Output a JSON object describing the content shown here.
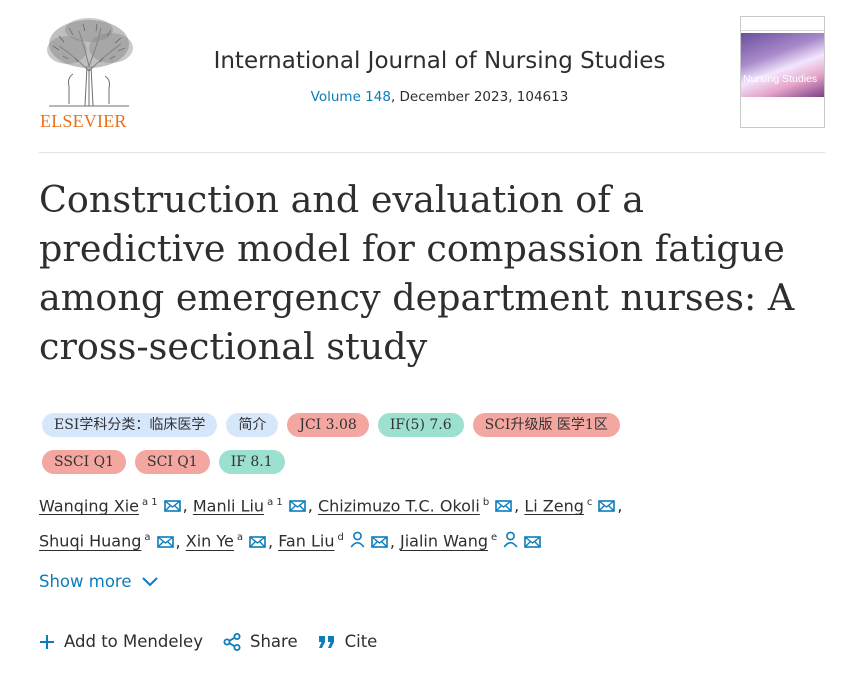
{
  "header": {
    "publisher": "ELSEVIER",
    "journal_title": "International Journal of Nursing Studies",
    "volume_link": "Volume 148",
    "volume_rest": ", December 2023, 104613",
    "cover_title": "Nursing Studies"
  },
  "article": {
    "title": "Construction and evaluation of a predictive model for compassion fatigue among emergency department nurses: A cross-sectional study"
  },
  "badges": [
    [
      {
        "label": "ESI学科分类：临床医学",
        "color": "#d6e6fb"
      },
      {
        "label": "简介",
        "color": "#d6e6fb"
      },
      {
        "label": "JCI 3.08",
        "color": "#f4a6a0"
      },
      {
        "label": "IF(5) 7.6",
        "color": "#9ce0cf"
      },
      {
        "label": "SCI升级版 医学1区",
        "color": "#f4a6a0"
      }
    ],
    [
      {
        "label": "SSCI Q1",
        "color": "#f4a6a0"
      },
      {
        "label": "SCI Q1",
        "color": "#f4a6a0"
      },
      {
        "label": "IF 8.1",
        "color": "#9ce0cf"
      }
    ]
  ],
  "authors": [
    {
      "name": "Wanqing Xie",
      "sup": "a 1",
      "person": false,
      "sep": ","
    },
    {
      "name": "Manli Liu",
      "sup": "a 1",
      "person": false,
      "sep": ","
    },
    {
      "name": "Chizimuzo T.C. Okoli",
      "sup": "b",
      "person": false,
      "sep": ","
    },
    {
      "name": "Li Zeng",
      "sup": "c",
      "person": false,
      "sep": ",",
      "break": true
    },
    {
      "name": "Shuqi Huang",
      "sup": "a",
      "person": false,
      "sep": ","
    },
    {
      "name": "Xin Ye",
      "sup": "a",
      "person": false,
      "sep": ","
    },
    {
      "name": "Fan Liu",
      "sup": "d",
      "person": true,
      "sep": ","
    },
    {
      "name": "Jialin Wang",
      "sup": "e",
      "person": true,
      "sep": ""
    }
  ],
  "show_more": "Show more",
  "actions": {
    "mendeley": "Add to Mendeley",
    "share": "Share",
    "cite": "Cite"
  },
  "icons": {
    "email": "envelope-icon",
    "person": "person-icon",
    "chevron": "chevron-down-icon",
    "plus": "plus-icon",
    "share": "share-icon",
    "cite": "quote-icon"
  },
  "colors": {
    "link": "#0c7dbb",
    "publisher": "#e9711c",
    "text": "#2e2e2e"
  }
}
